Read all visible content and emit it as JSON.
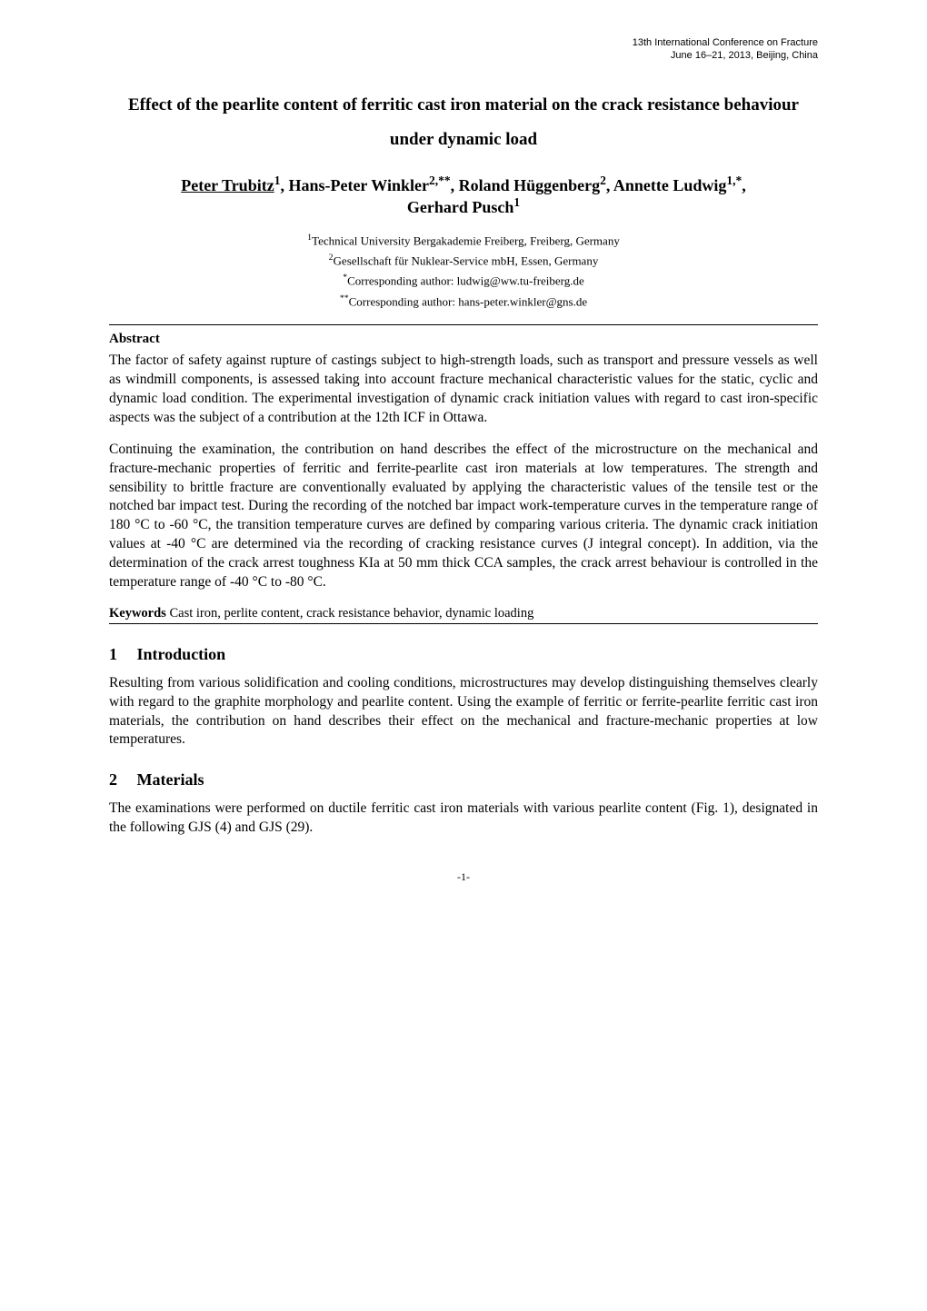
{
  "conference": {
    "line1": "13th International Conference on Fracture",
    "line2": "June 16–21, 2013, Beijing, China"
  },
  "title": "Effect of the pearlite content of ferritic cast iron material on the crack resistance behaviour under dynamic load",
  "authors": {
    "a1_name": "Peter Trubitz",
    "a1_sup": "1",
    "a2_name": "Hans-Peter Winkler",
    "a2_sup": "2,**",
    "a3_name": "Roland Hüggenberg",
    "a3_sup": "2",
    "a4_name": "Annette Ludwig",
    "a4_sup": "1,*",
    "a5_name": "Gerhard Pusch",
    "a5_sup": "1"
  },
  "affiliations": {
    "l1_sup": "1",
    "l1_text": "Technical University Bergakademie Freiberg, Freiberg, Germany",
    "l2_sup": "2",
    "l2_text": "Gesellschaft für Nuklear-Service mbH, Essen, Germany",
    "l3_sup": "*",
    "l3_text": "Corresponding author: ludwig@ww.tu-freiberg.de",
    "l4_sup": "**",
    "l4_text": "Corresponding author: hans-peter.winkler@gns.de"
  },
  "abstract_label": "Abstract",
  "abstract": {
    "p1": "The factor of safety against rupture of castings subject to high-strength loads, such as transport and pressure vessels as well as windmill components, is assessed taking into account fracture mechanical characteristic values for the static, cyclic and dynamic load condition. The experimental investigation of dynamic crack initiation values with regard to cast iron-specific aspects was the subject of a contribution at the 12th ICF in Ottawa.",
    "p2": "Continuing the examination, the contribution on hand describes the effect of the microstructure on the mechanical and fracture-mechanic properties of ferritic and ferrite-pearlite cast iron materials at low temperatures. The strength and sensibility to brittle fracture are conventionally evaluated by applying the characteristic values of the tensile test or the notched bar impact test. During the recording of the notched bar impact work-temperature curves in the temperature range of 180 °C to -60 °C, the transition temperature curves are defined by comparing various criteria. The dynamic crack initiation values at -40 °C are determined via the recording of cracking resistance curves (J integral concept). In addition, via the determination of the crack arrest toughness KIa at 50 mm thick CCA samples, the crack arrest behaviour is controlled in the temperature range of -40 °C to -80 °C."
  },
  "keywords": {
    "label": "Keywords",
    "text": " Cast iron, perlite content, crack resistance behavior, dynamic loading"
  },
  "sections": {
    "s1_num": "1",
    "s1_title": "Introduction",
    "s1_body": "Resulting from various solidification and cooling conditions, microstructures may develop distinguishing themselves clearly with regard to the graphite morphology and pearlite content. Using the example of ferritic or ferrite-pearlite ferritic cast iron materials, the contribution on hand describes their effect on the mechanical and fracture-mechanic properties at low temperatures.",
    "s2_num": "2",
    "s2_title": "Materials",
    "s2_body": "The examinations were performed on ductile ferritic cast iron materials with various pearlite content (Fig. 1), designated in the following GJS (4) and GJS (29)."
  },
  "page_number": "-1-"
}
